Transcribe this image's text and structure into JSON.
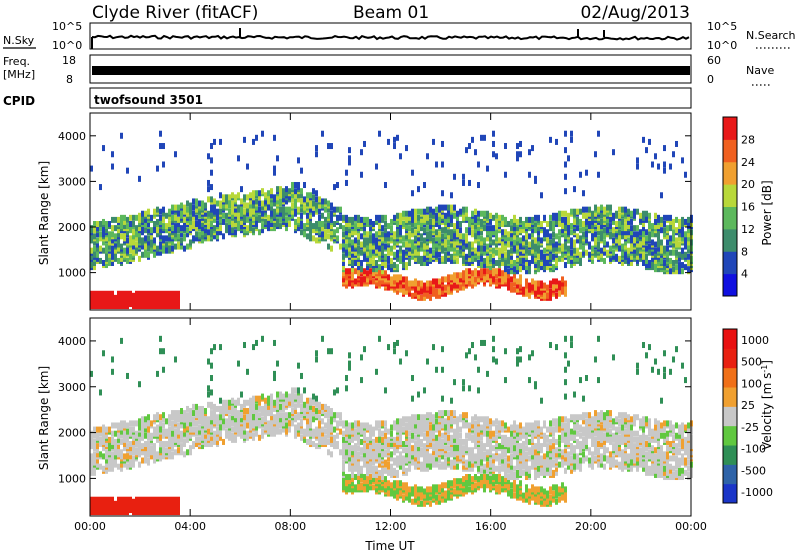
{
  "header": {
    "station": "Clyde River (fitACF)",
    "beam": "Beam 01",
    "date": "02/Aug/2013"
  },
  "strips": {
    "nsky_label": "N.Sky",
    "nsky_ticks": [
      "10^5",
      "10^0"
    ],
    "nsearch_label": "N.Search",
    "nsearch_ticks": [
      "10^5",
      "10^0"
    ],
    "freq_label_line1": "Freq.",
    "freq_label_line2": "[MHz]",
    "freq_ticks": [
      "18",
      "8"
    ],
    "nave_label": "Nave",
    "nave_ticks": [
      "60",
      "0"
    ],
    "cpid_label": "CPID",
    "cpid_value": "twofsound 3501"
  },
  "chart_data": [
    {
      "type": "heatmap",
      "title": "",
      "ylabel": "Slant Range [km]",
      "xlabel": "",
      "x_ticks": [
        "00:00",
        "04:00",
        "08:00",
        "12:00",
        "16:00",
        "20:00",
        "00:00"
      ],
      "y_ticks": [
        1000,
        2000,
        3000,
        4000
      ],
      "xlim_hours": [
        0,
        24
      ],
      "ylim_km": [
        180,
        4500
      ],
      "colorbar": {
        "label": "Power [dB]",
        "ticks": [
          "4",
          "8",
          "12",
          "16",
          "20",
          "24",
          "28"
        ],
        "colors": [
          "#1010e0",
          "#2046b8",
          "#3d8c6c",
          "#5cb85c",
          "#b8d83a",
          "#f0a030",
          "#f06020",
          "#e81818"
        ]
      }
    },
    {
      "type": "heatmap",
      "title": "",
      "ylabel": "Slant Range [km]",
      "xlabel": "Time UT",
      "x_ticks": [
        "00:00",
        "04:00",
        "08:00",
        "12:00",
        "16:00",
        "20:00",
        "00:00"
      ],
      "y_ticks": [
        1000,
        2000,
        3000,
        4000
      ],
      "xlim_hours": [
        0,
        24
      ],
      "ylim_km": [
        180,
        4500
      ],
      "colorbar": {
        "label": "Velocity [m s",
        "label_exp": "-1",
        "label_end": "]",
        "ticks": [
          "1000",
          "500",
          "100",
          "25",
          "-25",
          "-100",
          "-500",
          "-1000"
        ],
        "colors": [
          "#1a35c8",
          "#2e63a8",
          "#2f8f56",
          "#60c840",
          "#c8c8c8",
          "#f0a030",
          "#f07018",
          "#e82010",
          "#e81010"
        ]
      }
    }
  ]
}
